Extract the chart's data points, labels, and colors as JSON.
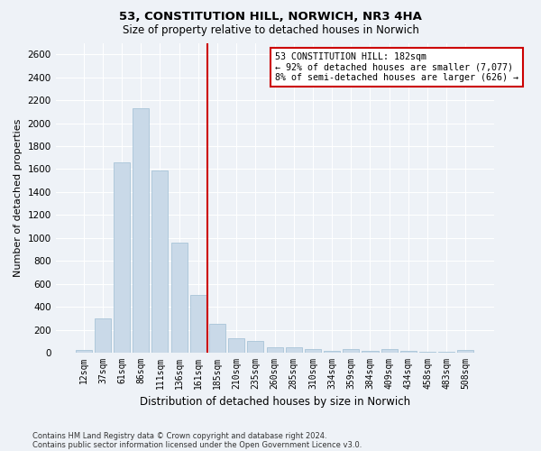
{
  "title": "53, CONSTITUTION HILL, NORWICH, NR3 4HA",
  "subtitle": "Size of property relative to detached houses in Norwich",
  "xlabel": "Distribution of detached houses by size in Norwich",
  "ylabel": "Number of detached properties",
  "categories": [
    "12sqm",
    "37sqm",
    "61sqm",
    "86sqm",
    "111sqm",
    "136sqm",
    "161sqm",
    "185sqm",
    "210sqm",
    "235sqm",
    "260sqm",
    "285sqm",
    "310sqm",
    "334sqm",
    "359sqm",
    "384sqm",
    "409sqm",
    "434sqm",
    "458sqm",
    "483sqm",
    "508sqm"
  ],
  "values": [
    25,
    300,
    1660,
    2130,
    1590,
    960,
    505,
    250,
    125,
    100,
    50,
    45,
    35,
    20,
    30,
    20,
    30,
    20,
    5,
    5,
    25
  ],
  "bar_color": "#c9d9e8",
  "bar_edge_color": "#a8c4d8",
  "vline_color": "#cc0000",
  "annotation_text": "53 CONSTITUTION HILL: 182sqm\n← 92% of detached houses are smaller (7,077)\n8% of semi-detached houses are larger (626) →",
  "annotation_box_color": "#ffffff",
  "annotation_box_edge_color": "#cc0000",
  "footnote1": "Contains HM Land Registry data © Crown copyright and database right 2024.",
  "footnote2": "Contains public sector information licensed under the Open Government Licence v3.0.",
  "bg_color": "#eef2f7",
  "grid_color": "#ffffff",
  "ylim": [
    0,
    2700
  ],
  "yticks": [
    0,
    200,
    400,
    600,
    800,
    1000,
    1200,
    1400,
    1600,
    1800,
    2000,
    2200,
    2400,
    2600
  ],
  "vline_bin_index": 7,
  "title_fontsize": 9.5,
  "subtitle_fontsize": 8.5
}
